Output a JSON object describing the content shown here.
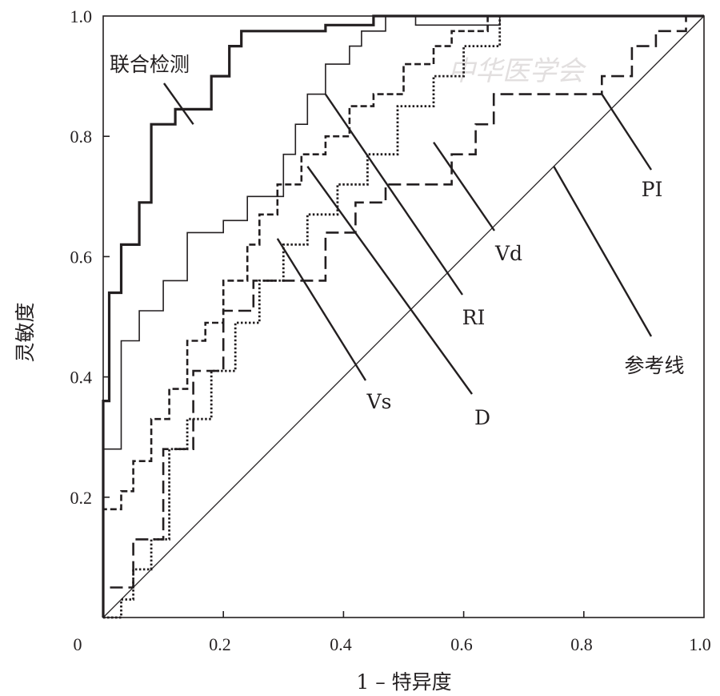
{
  "chart_data": {
    "type": "line",
    "xlabel": "1 – 特异度",
    "ylabel": "灵敏度",
    "xlim": [
      0,
      1
    ],
    "ylim": [
      0,
      1
    ],
    "x_ticks": [
      "0",
      "0.2",
      "0.4",
      "0.6",
      "0.8",
      "1.0"
    ],
    "y_ticks": [
      "0.2",
      "0.4",
      "0.6",
      "0.8",
      "1.0"
    ],
    "watermark": "中华医学会",
    "series": [
      {
        "name": "联合检测",
        "style": "thick-solid",
        "x": [
          0,
          0,
          0.01,
          0.01,
          0.03,
          0.03,
          0.06,
          0.06,
          0.08,
          0.08,
          0.1,
          0.1,
          0.12,
          0.12,
          0.14,
          0.14,
          0.18,
          0.18,
          0.21,
          0.21,
          0.23,
          0.23,
          0.37,
          0.37,
          0.45,
          0.45,
          1
        ],
        "y": [
          0,
          0.36,
          0.36,
          0.54,
          0.54,
          0.62,
          0.62,
          0.69,
          0.69,
          0.82,
          0.82,
          0.82,
          0.82,
          0.845,
          0.845,
          0.845,
          0.845,
          0.9,
          0.9,
          0.95,
          0.95,
          0.975,
          0.975,
          0.985,
          0.985,
          1,
          1
        ]
      },
      {
        "name": "RI",
        "style": "thin-solid",
        "x": [
          0,
          0,
          0.03,
          0.03,
          0.06,
          0.06,
          0.1,
          0.1,
          0.14,
          0.14,
          0.2,
          0.2,
          0.24,
          0.24,
          0.3,
          0.3,
          0.32,
          0.32,
          0.34,
          0.34,
          0.37,
          0.37,
          0.41,
          0.41,
          0.43,
          0.43,
          0.47,
          0.47,
          0.52,
          0.52,
          0.66,
          0.66,
          1
        ],
        "y": [
          0,
          0.28,
          0.28,
          0.46,
          0.46,
          0.51,
          0.51,
          0.56,
          0.56,
          0.64,
          0.64,
          0.66,
          0.66,
          0.7,
          0.7,
          0.77,
          0.77,
          0.82,
          0.82,
          0.87,
          0.87,
          0.92,
          0.92,
          0.95,
          0.95,
          0.975,
          0.975,
          1,
          1,
          0.985,
          0.985,
          1,
          1
        ]
      },
      {
        "name": "Vd",
        "style": "dash",
        "x": [
          0,
          0,
          0.03,
          0.03,
          0.05,
          0.05,
          0.08,
          0.08,
          0.11,
          0.11,
          0.14,
          0.14,
          0.17,
          0.17,
          0.2,
          0.2,
          0.24,
          0.24,
          0.26,
          0.26,
          0.29,
          0.29,
          0.33,
          0.33,
          0.37,
          0.37,
          0.41,
          0.41,
          0.45,
          0.45,
          0.5,
          0.5,
          0.55,
          0.55,
          0.58,
          0.58,
          0.64,
          0.64,
          1
        ],
        "y": [
          0,
          0.18,
          0.18,
          0.21,
          0.21,
          0.26,
          0.26,
          0.33,
          0.33,
          0.38,
          0.38,
          0.46,
          0.46,
          0.49,
          0.49,
          0.56,
          0.56,
          0.62,
          0.62,
          0.67,
          0.67,
          0.72,
          0.72,
          0.77,
          0.77,
          0.8,
          0.8,
          0.85,
          0.85,
          0.87,
          0.87,
          0.92,
          0.92,
          0.95,
          0.95,
          0.975,
          0.975,
          1,
          1
        ]
      },
      {
        "name": "PI",
        "style": "long-dash",
        "x": [
          0,
          0,
          0.05,
          0.05,
          0.1,
          0.1,
          0.15,
          0.15,
          0.2,
          0.2,
          0.25,
          0.25,
          0.31,
          0.31,
          0.37,
          0.37,
          0.42,
          0.42,
          0.47,
          0.47,
          0.52,
          0.52,
          0.58,
          0.58,
          0.62,
          0.62,
          0.65,
          0.65,
          0.69,
          0.69,
          0.83,
          0.83,
          0.88,
          0.88,
          0.92,
          0.92,
          0.97,
          0.97,
          1
        ],
        "y": [
          0,
          0.05,
          0.05,
          0.13,
          0.13,
          0.28,
          0.28,
          0.41,
          0.41,
          0.51,
          0.51,
          0.56,
          0.56,
          0.56,
          0.56,
          0.64,
          0.64,
          0.69,
          0.69,
          0.72,
          0.72,
          0.72,
          0.72,
          0.77,
          0.77,
          0.82,
          0.82,
          0.87,
          0.87,
          0.87,
          0.87,
          0.9,
          0.9,
          0.95,
          0.95,
          0.975,
          0.975,
          1,
          1
        ]
      },
      {
        "name": "Vs",
        "style": "dot",
        "x": [
          0,
          0.03,
          0.03,
          0.05,
          0.05,
          0.08,
          0.08,
          0.11,
          0.11,
          0.14,
          0.14,
          0.18,
          0.18,
          0.22,
          0.22,
          0.26,
          0.26,
          0.3,
          0.3,
          0.34,
          0.34,
          0.39,
          0.39,
          0.44,
          0.44,
          0.49,
          0.49,
          0.55,
          0.55,
          0.6,
          0.6,
          0.66,
          0.66,
          1
        ],
        "y": [
          0,
          0,
          0.03,
          0.03,
          0.08,
          0.08,
          0.13,
          0.13,
          0.28,
          0.28,
          0.33,
          0.33,
          0.41,
          0.41,
          0.49,
          0.49,
          0.56,
          0.56,
          0.62,
          0.62,
          0.67,
          0.67,
          0.72,
          0.72,
          0.77,
          0.77,
          0.85,
          0.85,
          0.9,
          0.9,
          0.95,
          0.95,
          1,
          1
        ]
      },
      {
        "name": "参考线",
        "style": "reference",
        "x": [
          0,
          1
        ],
        "y": [
          0,
          1
        ]
      }
    ],
    "annotations": [
      {
        "text": "联合检测",
        "at": [
          0.15,
          0.82
        ],
        "text_at": [
          0.02,
          0.92
        ]
      },
      {
        "text": "RI",
        "at": [
          0.37,
          0.87
        ],
        "text_at": [
          0.6,
          0.5
        ]
      },
      {
        "text": "Vd",
        "at": [
          0.55,
          0.79
        ],
        "text_at": [
          0.65,
          0.6
        ]
      },
      {
        "text": "PI",
        "at": [
          0.83,
          0.87
        ],
        "text_at": [
          0.93,
          0.7
        ]
      },
      {
        "text": "参考线",
        "at": [
          0.75,
          0.75
        ],
        "text_at": [
          0.9,
          0.45
        ]
      },
      {
        "text": "D",
        "at": [
          0.34,
          0.75
        ],
        "text_at": [
          0.62,
          0.36
        ]
      },
      {
        "text": "Vs",
        "at": [
          0.29,
          0.63
        ],
        "text_at": [
          0.46,
          0.37
        ]
      }
    ]
  }
}
